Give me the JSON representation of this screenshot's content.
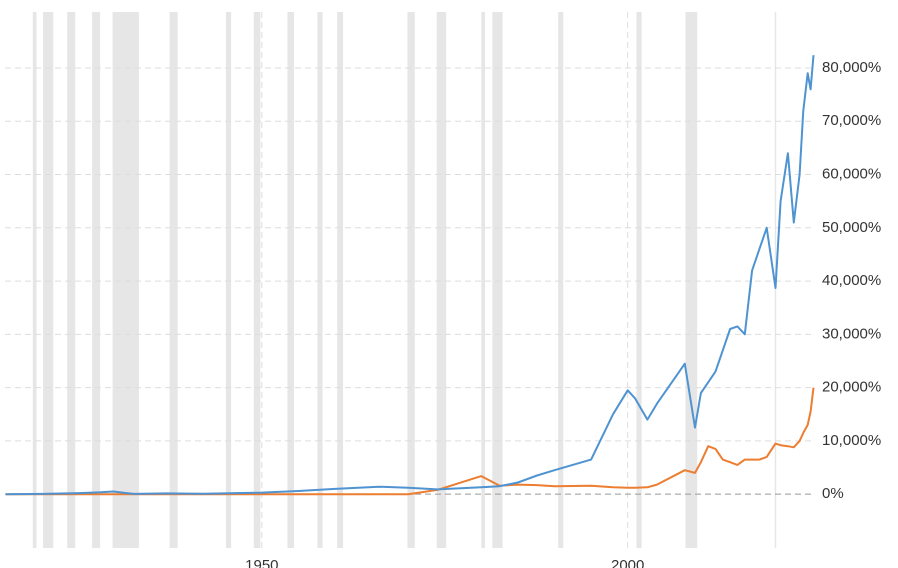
{
  "chart_data": {
    "type": "line",
    "x": [
      1915,
      1920,
      1925,
      1928,
      1929.7,
      1932.5,
      1937,
      1942,
      1950,
      1955,
      1960,
      1966,
      1970,
      1974,
      1980,
      1982.5,
      1985,
      1987.6,
      1990,
      1995,
      1998,
      2000,
      2001,
      2002.7,
      2004,
      2007.8,
      2009.2,
      2010,
      2011,
      2012,
      2013,
      2014,
      2015,
      2016,
      2017,
      2018,
      2019,
      2020.2,
      2020.9,
      2021.9,
      2022.7,
      2023.5,
      2024,
      2024.6,
      2025,
      2025.4
    ],
    "series": [
      {
        "color": "#4f93d1",
        "values": [
          0,
          50,
          200,
          350,
          500,
          50,
          150,
          100,
          300,
          600,
          1000,
          1400,
          1200,
          900,
          1300,
          1500,
          2200,
          3500,
          4500,
          6500,
          15000,
          19500,
          18000,
          14000,
          17000,
          24500,
          12500,
          19000,
          21000,
          23000,
          27000,
          31000,
          31500,
          30000,
          42000,
          46000,
          50000,
          38700,
          55000,
          64000,
          51000,
          60000,
          72000,
          79000,
          76000,
          82400
        ]
      },
      {
        "color": "#ec7d31",
        "values": [
          0,
          0,
          0,
          0,
          0,
          0,
          0,
          0,
          0,
          0,
          0,
          0,
          0,
          800,
          3400,
          1600,
          1800,
          1700,
          1500,
          1600,
          1300,
          1200,
          1200,
          1300,
          1800,
          4500,
          4000,
          6000,
          9000,
          8500,
          6500,
          6000,
          5500,
          6500,
          6500,
          6500,
          7000,
          9500,
          9200,
          9000,
          8800,
          10000,
          11500,
          13000,
          15500,
          20000
        ]
      }
    ],
    "recessions": [
      [
        1918.7,
        1919.2
      ],
      [
        1920.1,
        1921.5
      ],
      [
        1923.4,
        1924.5
      ],
      [
        1926.8,
        1927.9
      ],
      [
        1929.6,
        1933.2
      ],
      [
        1937.4,
        1938.5
      ],
      [
        1945.1,
        1945.8
      ],
      [
        1948.9,
        1949.8
      ],
      [
        1953.5,
        1954.4
      ],
      [
        1957.6,
        1958.3
      ],
      [
        1960.3,
        1961.1
      ],
      [
        1969.9,
        1970.9
      ],
      [
        1973.9,
        1975.2
      ],
      [
        1980.0,
        1980.5
      ],
      [
        1981.5,
        1982.9
      ],
      [
        1990.5,
        1991.2
      ],
      [
        2001.2,
        2001.9
      ],
      [
        2007.9,
        2009.5
      ],
      [
        2020.1,
        2020.3
      ]
    ],
    "recession_color": "#e6e6e6",
    "xlim": [
      1914.9,
      2025.6
    ],
    "xticks": [
      1950,
      2000
    ],
    "ylim": [
      -10100,
      90500
    ],
    "yticks": [
      {
        "value": 0,
        "label": "0%"
      },
      {
        "value": 10000,
        "label": "10,000%"
      },
      {
        "value": 20000,
        "label": "20,000%"
      },
      {
        "value": 30000,
        "label": "30,000%"
      },
      {
        "value": 40000,
        "label": "40,000%"
      },
      {
        "value": 50000,
        "label": "50,000%"
      },
      {
        "value": 60000,
        "label": "60,000%"
      },
      {
        "value": 70000,
        "label": "70,000%"
      },
      {
        "value": 80000,
        "label": "80,000%"
      }
    ],
    "grid": true
  }
}
